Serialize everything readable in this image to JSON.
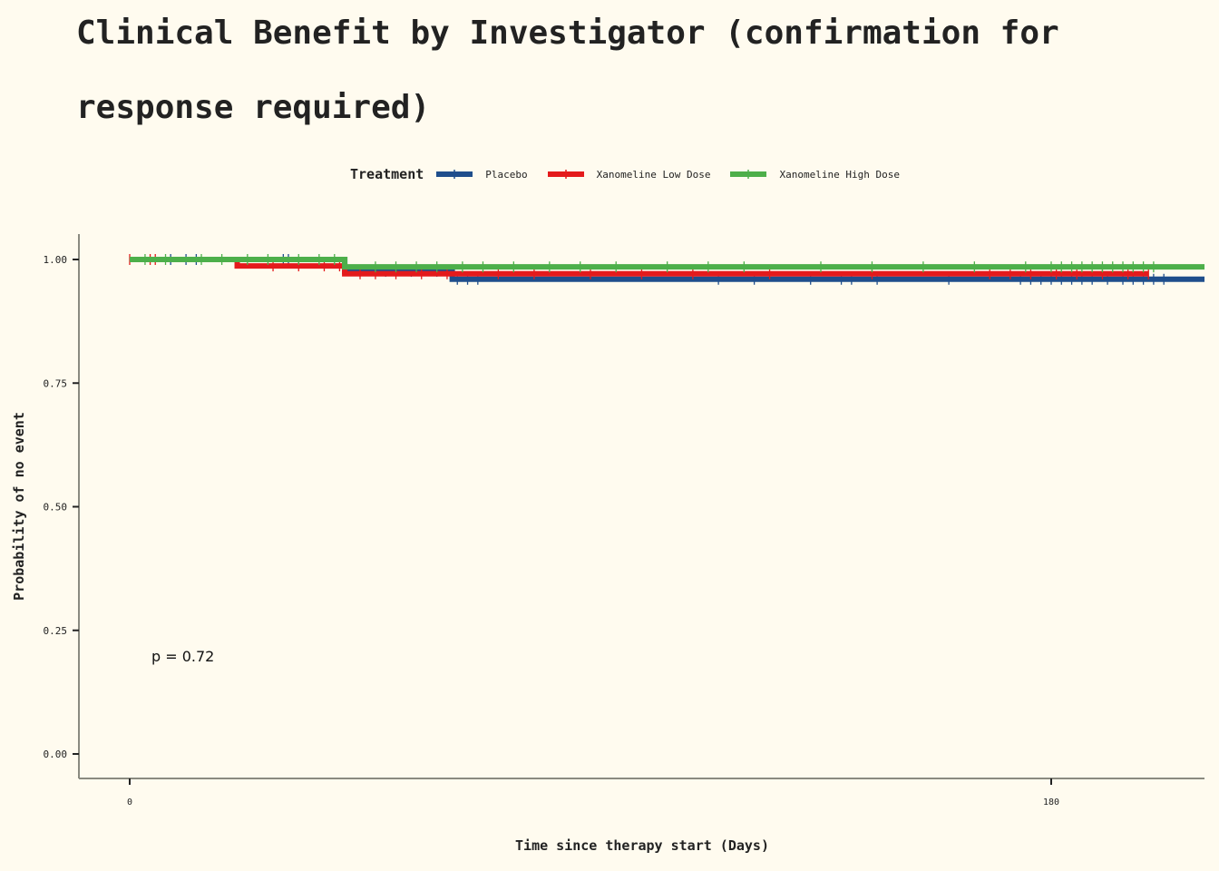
{
  "chart_data": {
    "type": "line",
    "subtype": "kaplan-meier step",
    "title": "Clinical Benefit by Investigator (confirmation for response required)",
    "xlabel": "Time since therapy start (Days)",
    "ylabel": "Probability of no event",
    "xlim": [
      -10,
      210
    ],
    "ylim": [
      -0.05,
      1.05
    ],
    "x_ticks": [
      0,
      180
    ],
    "x_tick_labels": [
      "0",
      "180"
    ],
    "y_ticks": [
      0,
      0.25,
      0.5,
      0.75,
      1.0
    ],
    "y_tick_labels": [
      "0.00",
      "0.25",
      "0.50",
      "0.75",
      "1.00"
    ],
    "legend": {
      "title": "Treatment",
      "position": "top"
    },
    "annotation": "p = 0.72",
    "series": [
      {
        "name": "Placebo",
        "color": "#1f4e8c",
        "steps": [
          [
            0,
            1.0
          ],
          [
            42,
            0.976
          ],
          [
            63,
            0.96
          ],
          [
            210,
            0.96
          ]
        ],
        "censor": [
          [
            8,
            1.0
          ],
          [
            11,
            1.0
          ],
          [
            13,
            1.0
          ],
          [
            30,
            1.0
          ],
          [
            31,
            1.0
          ],
          [
            45,
            0.976
          ],
          [
            50,
            0.976
          ],
          [
            55,
            0.976
          ],
          [
            60,
            0.976
          ],
          [
            64,
            0.96
          ],
          [
            66,
            0.96
          ],
          [
            68,
            0.96
          ],
          [
            115,
            0.96
          ],
          [
            122,
            0.96
          ],
          [
            133,
            0.96
          ],
          [
            139,
            0.96
          ],
          [
            141,
            0.96
          ],
          [
            146,
            0.96
          ],
          [
            160,
            0.96
          ],
          [
            174,
            0.96
          ],
          [
            176,
            0.96
          ],
          [
            178,
            0.96
          ],
          [
            180,
            0.96
          ],
          [
            182,
            0.96
          ],
          [
            184,
            0.96
          ],
          [
            186,
            0.96
          ],
          [
            188,
            0.96
          ],
          [
            191,
            0.96
          ],
          [
            194,
            0.96
          ],
          [
            196,
            0.96
          ],
          [
            198,
            0.96
          ],
          [
            200,
            0.96
          ],
          [
            202,
            0.96
          ]
        ]
      },
      {
        "name": "Xanomeline Low Dose",
        "color": "#e41a1c",
        "steps": [
          [
            0,
            1.0
          ],
          [
            21,
            0.987
          ],
          [
            42,
            0.971
          ],
          [
            199,
            0.971
          ]
        ],
        "censor": [
          [
            0,
            1.0
          ],
          [
            4,
            1.0
          ],
          [
            5,
            1.0
          ],
          [
            28,
            0.987
          ],
          [
            33,
            0.987
          ],
          [
            38,
            0.987
          ],
          [
            41,
            0.987
          ],
          [
            45,
            0.971
          ],
          [
            48,
            0.971
          ],
          [
            52,
            0.971
          ],
          [
            57,
            0.971
          ],
          [
            62,
            0.971
          ],
          [
            72,
            0.971
          ],
          [
            79,
            0.971
          ],
          [
            90,
            0.971
          ],
          [
            100,
            0.971
          ],
          [
            110,
            0.971
          ],
          [
            125,
            0.971
          ],
          [
            145,
            0.971
          ],
          [
            168,
            0.971
          ],
          [
            172,
            0.971
          ],
          [
            176,
            0.971
          ],
          [
            181,
            0.971
          ],
          [
            185,
            0.971
          ],
          [
            190,
            0.971
          ],
          [
            195,
            0.971
          ],
          [
            199,
            0.971
          ]
        ]
      },
      {
        "name": "Xanomeline High Dose",
        "color": "#4daf4a",
        "steps": [
          [
            0,
            1.0
          ],
          [
            42,
            0.985
          ],
          [
            210,
            0.985
          ]
        ],
        "censor": [
          [
            3,
            1.0
          ],
          [
            7,
            1.0
          ],
          [
            14,
            1.0
          ],
          [
            18,
            1.0
          ],
          [
            23,
            1.0
          ],
          [
            27,
            1.0
          ],
          [
            33,
            1.0
          ],
          [
            37,
            1.0
          ],
          [
            40,
            1.0
          ],
          [
            48,
            0.985
          ],
          [
            52,
            0.985
          ],
          [
            56,
            0.985
          ],
          [
            60,
            0.985
          ],
          [
            65,
            0.985
          ],
          [
            69,
            0.985
          ],
          [
            75,
            0.985
          ],
          [
            82,
            0.985
          ],
          [
            88,
            0.985
          ],
          [
            95,
            0.985
          ],
          [
            105,
            0.985
          ],
          [
            113,
            0.985
          ],
          [
            120,
            0.985
          ],
          [
            135,
            0.985
          ],
          [
            145,
            0.985
          ],
          [
            155,
            0.985
          ],
          [
            165,
            0.985
          ],
          [
            175,
            0.985
          ],
          [
            180,
            0.985
          ],
          [
            182,
            0.985
          ],
          [
            184,
            0.985
          ],
          [
            186,
            0.985
          ],
          [
            188,
            0.985
          ],
          [
            190,
            0.985
          ],
          [
            192,
            0.985
          ],
          [
            194,
            0.985
          ],
          [
            196,
            0.985
          ],
          [
            198,
            0.985
          ],
          [
            200,
            0.985
          ]
        ]
      }
    ]
  }
}
